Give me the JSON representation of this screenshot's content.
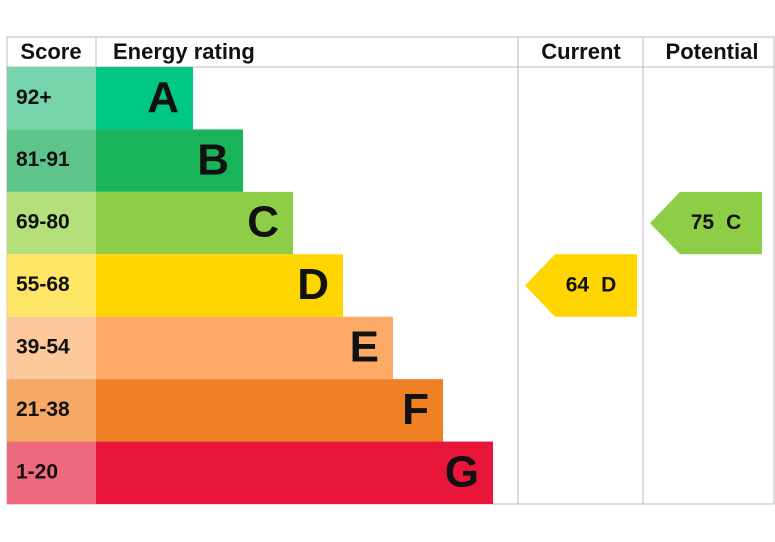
{
  "header": {
    "score": "Score",
    "rating": "Energy rating",
    "current": "Current",
    "potential": "Potential"
  },
  "bands": [
    {
      "score": "92+",
      "letter": "A",
      "color": "#00c781",
      "light": "#77d3ac"
    },
    {
      "score": "81-91",
      "letter": "B",
      "color": "#19b459",
      "light": "#5dc58a"
    },
    {
      "score": "69-80",
      "letter": "C",
      "color": "#8dce46",
      "light": "#b3e07a"
    },
    {
      "score": "55-68",
      "letter": "D",
      "color": "#ffd500",
      "light": "#ffe566"
    },
    {
      "score": "39-54",
      "letter": "E",
      "color": "#fcaa65",
      "light": "#fdc89b"
    },
    {
      "score": "21-38",
      "letter": "F",
      "color": "#ef8023",
      "light": "#f5a965"
    },
    {
      "score": "1-20",
      "letter": "G",
      "color": "#e9153b",
      "light": "#f06a7f"
    }
  ],
  "current": {
    "value": 64,
    "letter": "D"
  },
  "potential": {
    "value": 75,
    "letter": "C"
  }
}
